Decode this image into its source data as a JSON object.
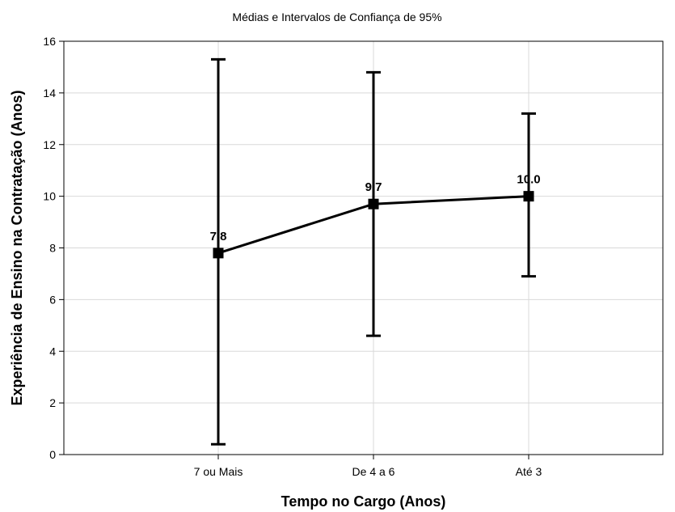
{
  "chart_data": {
    "type": "line",
    "title": "Médias e Intervalos de Confiança de 95%",
    "xlabel": "Tempo no Cargo (Anos)",
    "ylabel": "Experiência de Ensino na Contratação (Anos)",
    "categories": [
      "7 ou Mais",
      "De 4 a 6",
      "Até 3"
    ],
    "means": [
      7.8,
      9.7,
      10.0
    ],
    "mean_labels": [
      "7.8",
      "9.7",
      "10.0"
    ],
    "ci_lower": [
      0.4,
      4.6,
      6.9
    ],
    "ci_upper": [
      15.3,
      14.8,
      13.2
    ],
    "ylim": [
      0,
      16
    ],
    "yticks": [
      0,
      2,
      4,
      6,
      8,
      10,
      12,
      14,
      16
    ],
    "grid": true,
    "legend": "none",
    "line_color": "#000000"
  }
}
